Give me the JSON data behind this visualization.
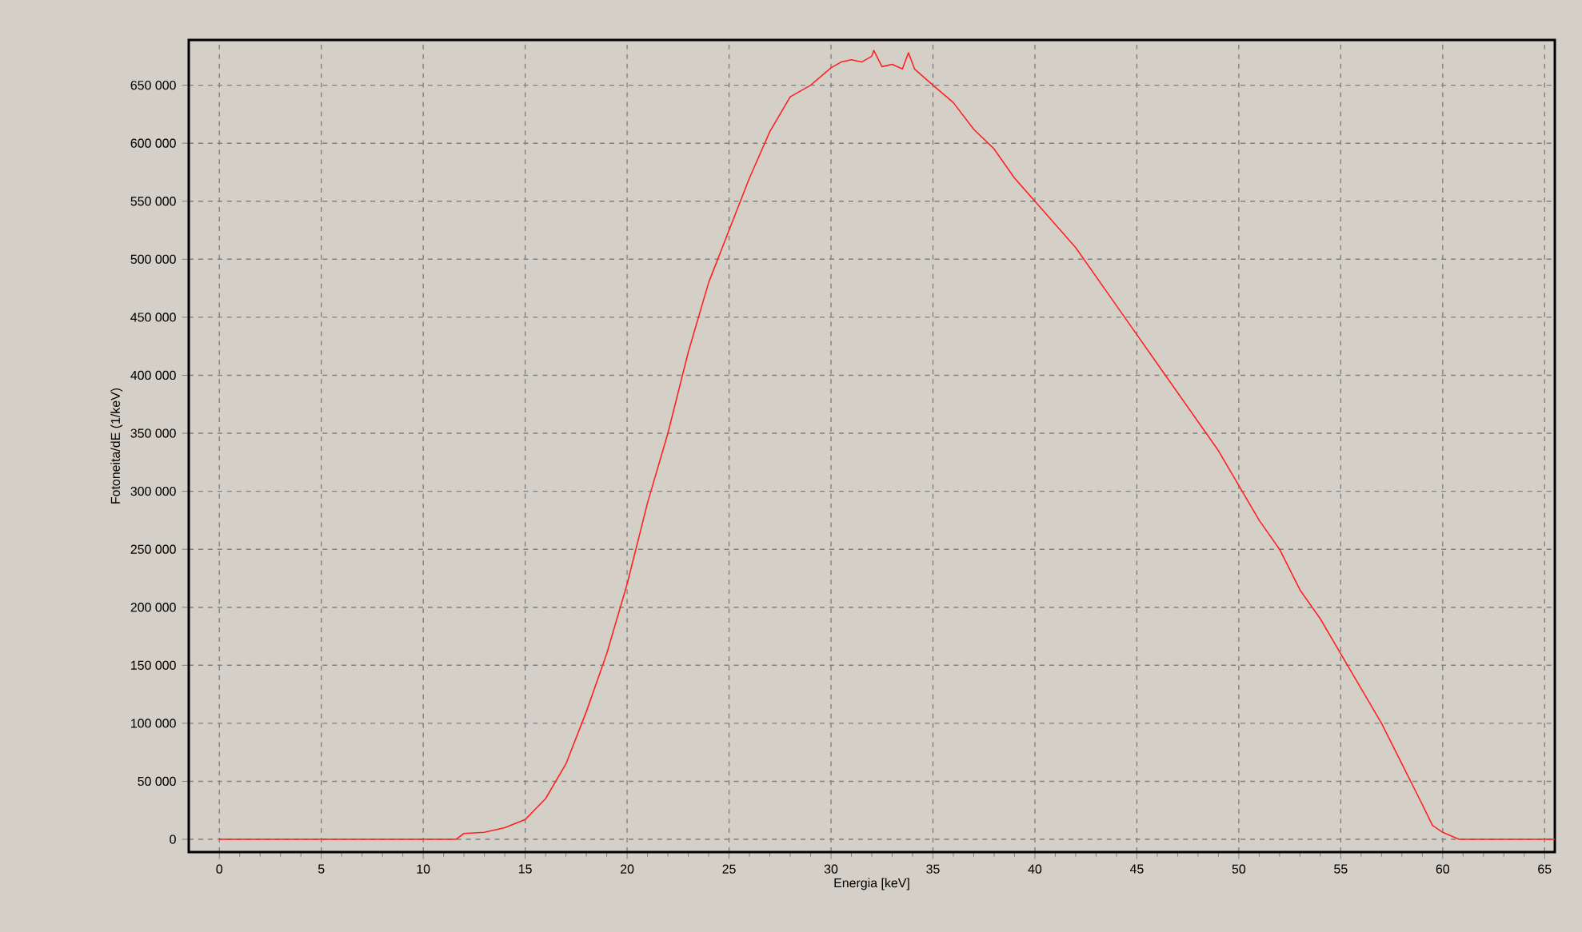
{
  "chart_data": {
    "type": "line",
    "xlabel": "Energia [keV]",
    "ylabel": "Fotoneita/dE (1/keV)",
    "x": [
      0,
      11.6,
      12,
      13,
      14,
      15,
      16,
      17,
      18,
      19,
      20,
      21,
      22,
      23,
      24,
      25,
      26,
      27,
      28,
      29,
      30,
      30.5,
      31,
      31.5,
      32,
      32.1,
      32.5,
      33,
      33.5,
      33.8,
      34.1,
      35,
      36,
      37,
      38,
      39,
      40,
      41,
      42,
      43,
      44,
      45,
      46,
      47,
      48,
      49,
      50,
      51,
      52,
      53,
      54,
      55,
      56,
      57,
      58,
      59,
      59.5,
      60,
      60.8,
      65.5
    ],
    "values": [
      0,
      0,
      5000,
      6000,
      10000,
      17000,
      35000,
      65000,
      110000,
      160000,
      220000,
      290000,
      350000,
      420000,
      480000,
      525000,
      570000,
      610000,
      640000,
      650000,
      665000,
      670000,
      672000,
      670000,
      675000,
      680000,
      666000,
      668000,
      664000,
      678000,
      664000,
      650000,
      635000,
      612000,
      595000,
      570000,
      550000,
      530000,
      510000,
      485000,
      460000,
      435000,
      410000,
      385000,
      360000,
      335000,
      305000,
      275000,
      250000,
      215000,
      190000,
      160000,
      130000,
      100000,
      65000,
      30000,
      12000,
      6000,
      0,
      0
    ],
    "color": "#ff2020",
    "xlim": [
      -1.5,
      65.5
    ],
    "ylim": [
      -11000,
      689000
    ],
    "xticks": [
      0,
      5,
      10,
      15,
      20,
      25,
      30,
      35,
      40,
      45,
      50,
      55,
      60,
      65
    ],
    "yticks": [
      0,
      {
        "value": 50000,
        "label": "50 000"
      },
      {
        "value": 100000,
        "label": "100 000"
      },
      {
        "value": 150000,
        "label": "150 000"
      },
      {
        "value": 200000,
        "label": "200 000"
      },
      {
        "value": 250000,
        "label": "250 000"
      },
      {
        "value": 300000,
        "label": "300 000"
      },
      {
        "value": 350000,
        "label": "350 000"
      },
      {
        "value": 400000,
        "label": "400 000"
      },
      {
        "value": 450000,
        "label": "450 000"
      },
      {
        "value": 500000,
        "label": "500 000"
      },
      {
        "value": 550000,
        "label": "550 000"
      },
      {
        "value": 600000,
        "label": "600 000"
      },
      {
        "value": 650000,
        "label": "650 000"
      }
    ],
    "grid": true,
    "marker": "none",
    "line_style": "solid"
  }
}
